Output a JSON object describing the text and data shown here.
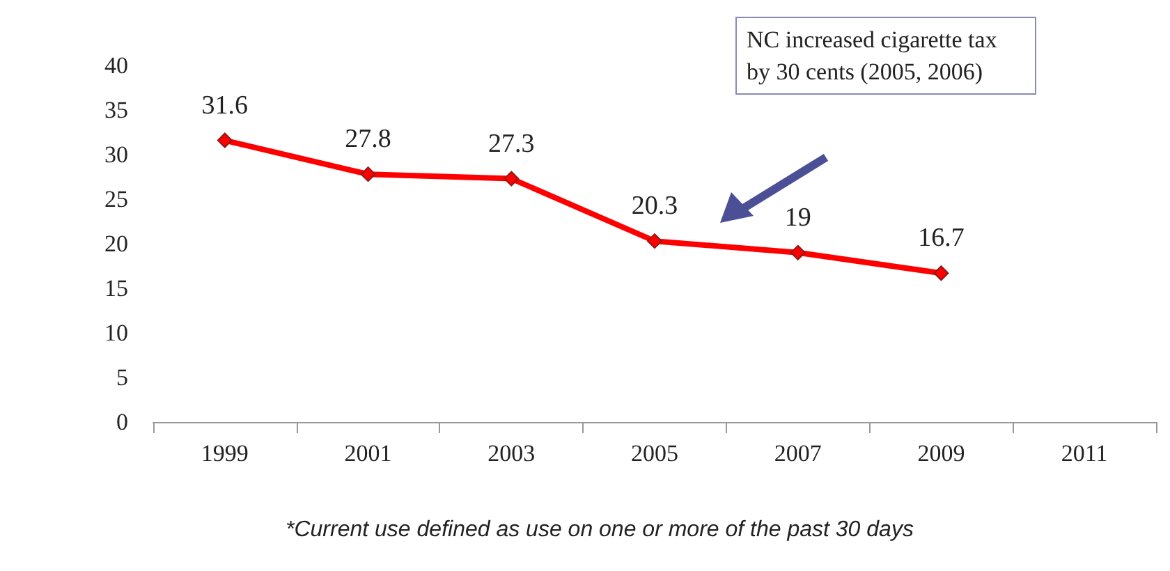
{
  "chart_data": {
    "type": "line",
    "categories": [
      "1999",
      "2001",
      "2003",
      "2005",
      "2007",
      "2009",
      "2011"
    ],
    "series": [
      {
        "color": "#ff0000",
        "values": [
          31.6,
          27.8,
          27.3,
          20.3,
          19,
          16.7,
          null
        ]
      }
    ],
    "ylim": [
      0,
      40
    ],
    "yticks": [
      0,
      5,
      10,
      15,
      20,
      25,
      30,
      35,
      40
    ],
    "grid": false,
    "marker": "diamond",
    "line_style": "solid",
    "data_labels": true,
    "annotations": [
      "NC increased cigarette tax by 30 cents (2005, 2006)",
      "*Current use defined as use on one or more of the past 30 days"
    ]
  }
}
